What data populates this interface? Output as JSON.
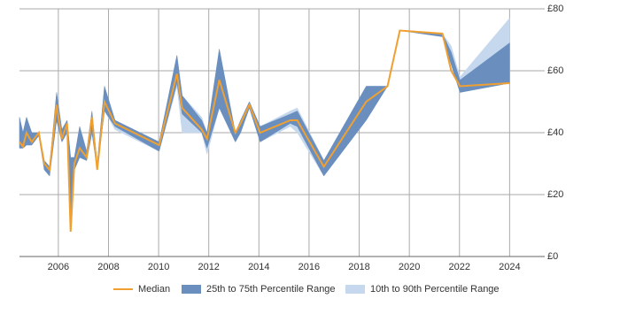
{
  "chart_data": {
    "type": "line",
    "x": [
      2004.45,
      2004.59,
      2004.73,
      2004.94,
      2005.22,
      2005.44,
      2005.65,
      2005.93,
      2006.14,
      2006.35,
      2006.49,
      2006.64,
      2006.85,
      2007.13,
      2007.34,
      2007.55,
      2007.84,
      2008.26,
      2010.02,
      2010.73,
      2010.94,
      2011.72,
      2011.93,
      2012.42,
      2013.06,
      2013.27,
      2013.62,
      2014.05,
      2015.25,
      2015.53,
      2016.59,
      2018.28,
      2019.13,
      2019.62,
      2021.32,
      2021.67,
      2022.02,
      2024.0
    ],
    "series": [
      {
        "name": "10th to 90th Percentile Range",
        "color": "#c6d8ee",
        "low": [
          35,
          35,
          36,
          36,
          39,
          28,
          26,
          44,
          37,
          40,
          8,
          28,
          32,
          31,
          40,
          28,
          47,
          41,
          34,
          55,
          40,
          40,
          33,
          48,
          37,
          40,
          48,
          37,
          42,
          40,
          26,
          44,
          55,
          73,
          71,
          62,
          53,
          56
        ],
        "high": [
          45,
          40,
          45,
          40,
          40,
          31,
          29,
          53,
          41,
          44,
          32,
          32,
          42,
          34,
          47,
          30,
          55,
          44,
          37,
          65,
          52,
          45,
          40,
          67,
          40,
          44,
          50,
          42,
          47,
          48,
          31,
          55,
          55,
          73,
          72,
          68,
          58,
          77
        ]
      },
      {
        "name": "25th to 75th Percentile Range",
        "color": "#6a8fbf",
        "low": [
          35,
          35,
          36,
          36,
          39,
          28,
          26,
          44,
          37,
          40,
          8,
          28,
          32,
          31,
          40,
          28,
          47,
          42,
          34,
          56,
          46,
          40,
          35,
          48,
          37,
          40,
          48,
          37,
          43,
          42,
          26,
          44,
          55,
          73,
          71,
          62,
          53,
          56
        ],
        "high": [
          45,
          40,
          45,
          40,
          40,
          31,
          29,
          53,
          41,
          44,
          32,
          32,
          42,
          34,
          47,
          30,
          55,
          44,
          37,
          65,
          52,
          44,
          40,
          67,
          40,
          44,
          50,
          42,
          46,
          47,
          31,
          55,
          55,
          73,
          72,
          66,
          57,
          69
        ]
      },
      {
        "name": "Median",
        "color": "#f0a030",
        "values": [
          37,
          35.5,
          40,
          37,
          40,
          30,
          28,
          49,
          38,
          43,
          8,
          30,
          35,
          32,
          45,
          28,
          50,
          43,
          36,
          59,
          48,
          41,
          38,
          57,
          40,
          43,
          49,
          40,
          44,
          44,
          29,
          50,
          55,
          73,
          72,
          60,
          55,
          56
        ]
      }
    ],
    "xlim": [
      2004.45,
      2025.4
    ],
    "ylim": [
      0,
      80
    ],
    "xticks": [
      2006,
      2008,
      2010,
      2012,
      2014,
      2016,
      2018,
      2020,
      2022,
      2024
    ],
    "yticks": [
      {
        "value": 0,
        "label": "£0"
      },
      {
        "value": 20,
        "label": "£20"
      },
      {
        "value": 40,
        "label": "£40"
      },
      {
        "value": 60,
        "label": "£60"
      },
      {
        "value": 80,
        "label": "£80"
      }
    ],
    "grid": true
  }
}
